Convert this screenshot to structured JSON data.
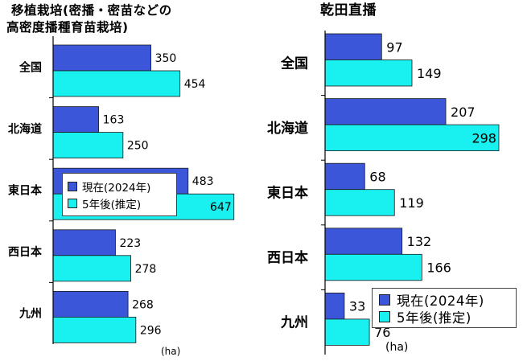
{
  "colors": {
    "current": "#3B56D8",
    "future": "#19F0F0",
    "axis": "#000000",
    "plot_bg": "#ffffff"
  },
  "chart_data": [
    {
      "type": "bar",
      "orientation": "horizontal",
      "title": "移植栽培(密播・密苗などの",
      "subtitle": "高密度播種育苗栽培)",
      "categories": [
        "全国",
        "北海道",
        "東日本",
        "西日本",
        "九州"
      ],
      "series": [
        {
          "name": "現在(2024年)",
          "values": [
            350,
            163,
            483,
            223,
            268
          ]
        },
        {
          "name": "5年後(推定)",
          "values": [
            454,
            250,
            647,
            278,
            296
          ]
        }
      ],
      "unit": "(ha)",
      "legend": "middle-left",
      "grid": false
    },
    {
      "type": "bar",
      "orientation": "horizontal",
      "title": "乾田直播",
      "categories": [
        "全国",
        "北海道",
        "東日本",
        "西日本",
        "九州"
      ],
      "series": [
        {
          "name": "現在(2024年)",
          "values": [
            97,
            207,
            68,
            132,
            33
          ]
        },
        {
          "name": "5年後(推定)",
          "values": [
            149,
            298,
            119,
            166,
            76
          ]
        }
      ],
      "unit": "(ha)",
      "legend": "bottom-right",
      "grid": false
    }
  ]
}
